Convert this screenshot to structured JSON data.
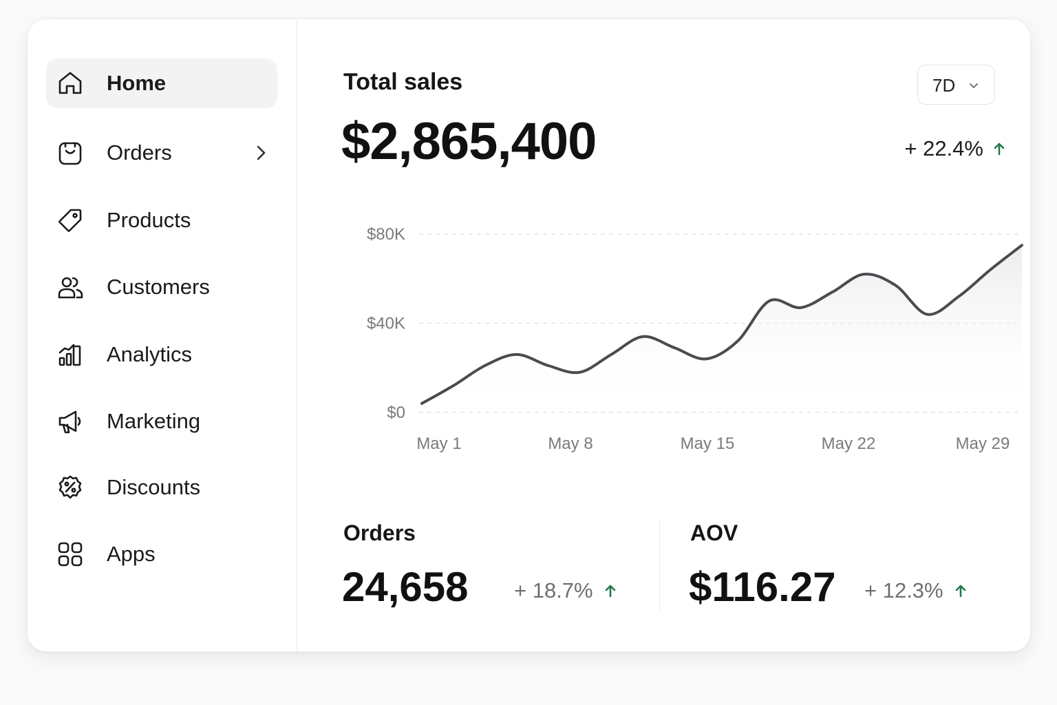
{
  "sidebar": {
    "items": [
      {
        "label": "Home",
        "icon": "home-icon"
      },
      {
        "label": "Orders",
        "icon": "bag-icon"
      },
      {
        "label": "Products",
        "icon": "tag-icon"
      },
      {
        "label": "Customers",
        "icon": "users-icon"
      },
      {
        "label": "Analytics",
        "icon": "bar-chart-icon"
      },
      {
        "label": "Marketing",
        "icon": "megaphone-icon"
      },
      {
        "label": "Discounts",
        "icon": "percent-badge-icon"
      },
      {
        "label": "Apps",
        "icon": "apps-grid-icon"
      }
    ],
    "active": "Home"
  },
  "sales": {
    "title": "Total sales",
    "value": "$2,865,400",
    "change": "+ 22.4%",
    "range": "7D"
  },
  "colors": {
    "positive": "#1f7a4a",
    "line": "#4a4a4f",
    "active_nav_bg": "#f3f3f3"
  },
  "chart_data": {
    "type": "area",
    "x_ticks": [
      "May 1",
      "May 8",
      "May 15",
      "May 22",
      "May 29"
    ],
    "y_ticks": [
      "$0",
      "$40K",
      "$80K"
    ],
    "ylim": [
      0,
      80000
    ],
    "grid": true,
    "x": [
      "May 1",
      "May 3",
      "May 5",
      "May 6",
      "May 7",
      "May 9",
      "May 11",
      "May 12",
      "May 13",
      "May 15",
      "May 16",
      "May 18",
      "May 19",
      "May 20",
      "May 22",
      "May 23",
      "May 25",
      "May 27",
      "May 29",
      "May 31"
    ],
    "values": [
      4000,
      12000,
      21000,
      26000,
      21000,
      18000,
      26000,
      34000,
      29000,
      24000,
      32000,
      50000,
      47000,
      54000,
      62000,
      57000,
      44000,
      52000,
      64000,
      75000
    ]
  },
  "metrics": {
    "orders": {
      "title": "Orders",
      "value": "24,658",
      "change": "+ 18.7%"
    },
    "aov": {
      "title": "AOV",
      "value": "$116.27",
      "change": "+ 12.3%"
    }
  }
}
